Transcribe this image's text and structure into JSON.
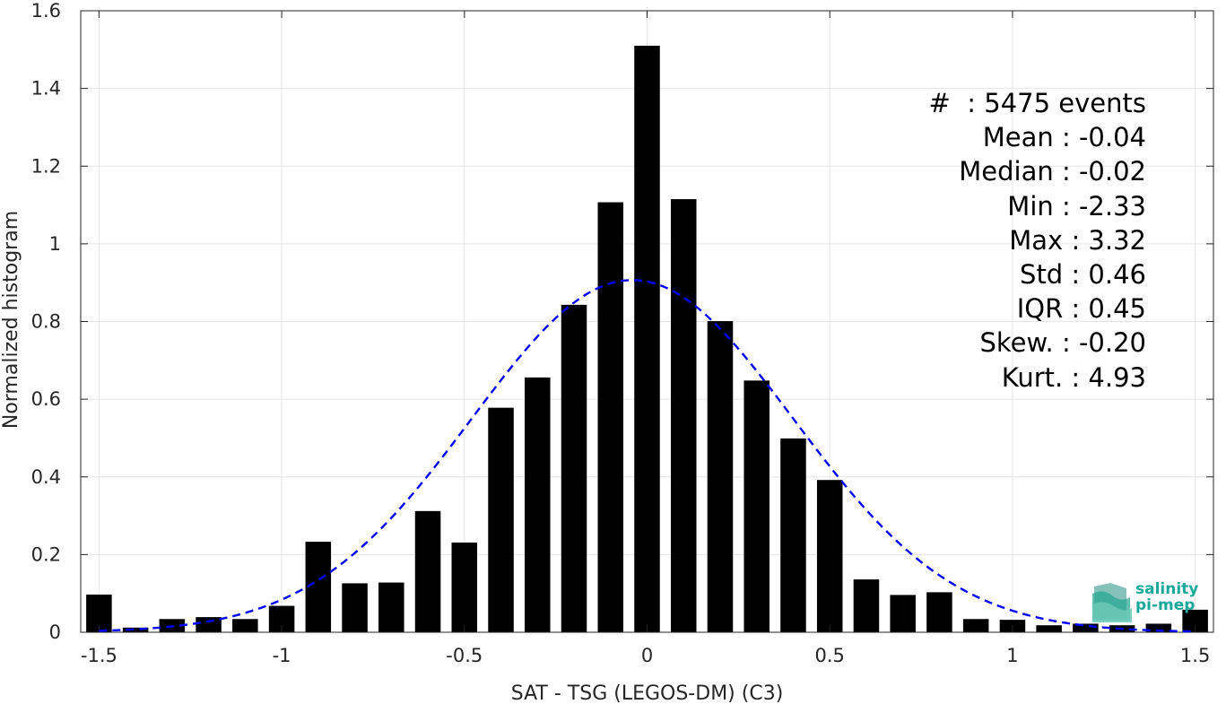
{
  "chart_data": {
    "type": "bar",
    "xlabel": "SAT - TSG (LEGOS-DM) (C3)",
    "ylabel": "Normalized histogram",
    "xlim": [
      -1.55,
      1.55
    ],
    "ylim": [
      0,
      1.6
    ],
    "xticks": [
      -1.5,
      -1,
      -0.5,
      0,
      0.5,
      1,
      1.5
    ],
    "xtick_labels": [
      "-1.5",
      "-1",
      "-0.5",
      "0",
      "0.5",
      "1",
      "1.5"
    ],
    "yticks": [
      0,
      0.2,
      0.4,
      0.6,
      0.8,
      1,
      1.2,
      1.4,
      1.6
    ],
    "ytick_labels": [
      "0",
      "0.2",
      "0.4",
      "0.6",
      "0.8",
      "1",
      "1.2",
      "1.4",
      "1.6"
    ],
    "grid": true,
    "bar_color": "#000000",
    "bar_width": 0.07,
    "bins": [
      -1.5,
      -1.4,
      -1.3,
      -1.2,
      -1.1,
      -1.0,
      -0.9,
      -0.8,
      -0.7,
      -0.6,
      -0.5,
      -0.4,
      -0.3,
      -0.2,
      -0.1,
      0.0,
      0.1,
      0.2,
      0.3,
      0.4,
      0.5,
      0.6,
      0.7,
      0.8,
      0.9,
      1.0,
      1.1,
      1.2,
      1.3,
      1.4,
      1.5
    ],
    "values": [
      0.097,
      0.012,
      0.034,
      0.039,
      0.034,
      0.068,
      0.233,
      0.126,
      0.128,
      0.312,
      0.231,
      0.578,
      0.656,
      0.843,
      1.107,
      1.51,
      1.115,
      0.801,
      0.648,
      0.499,
      0.392,
      0.136,
      0.096,
      0.103,
      0.034,
      0.032,
      0.018,
      0.022,
      0.018,
      0.022,
      0.058
    ],
    "fit_curve": {
      "type": "normal",
      "mean": -0.04,
      "std": 0.44,
      "color": "#0000ff",
      "style": "dashed"
    },
    "annotations": [
      "#  : 5475 events",
      "Mean : -0.04",
      "Median : -0.02",
      "Min : -2.33",
      "Max : 3.32",
      "Std : 0.46",
      "IQR : 0.45",
      "Skew. : -0.20",
      "Kurt. : 4.93"
    ]
  },
  "logo": {
    "line1": "salinity",
    "line2": "pi-mep",
    "color": "#1aa89a"
  }
}
